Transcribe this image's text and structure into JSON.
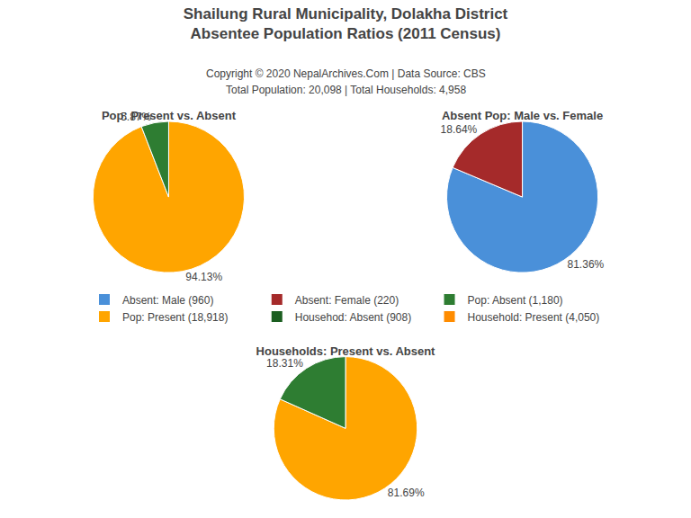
{
  "title": [
    "Shailung Rural Municipality, Dolakha District",
    "Absentee Population Ratios (2011 Census)"
  ],
  "subtitle": [
    "Copyright © 2020 NepalArchives.Com | Data Source: CBS",
    "Total Population: 20,098 | Total Households: 4,958"
  ],
  "series": [
    {
      "name": "Absent: Male (960)",
      "color": "#4A90D9"
    },
    {
      "name": "Absent: Female (220)",
      "color": "#A52A2A"
    },
    {
      "name": "Pop: Absent (1,180)",
      "color": "#2E7D32"
    },
    {
      "name": "Pop: Present (18,918)",
      "color": "#FFA500"
    },
    {
      "name": "Househod: Absent (908)",
      "color": "#1B5E20"
    },
    {
      "name": "Household: Present (4,050)",
      "color": "#FF8C00"
    }
  ],
  "chart_data": [
    {
      "type": "pie",
      "title": "Pop: Present vs. Absent",
      "values": [
        94.13,
        5.87
      ],
      "value_labels": [
        "94.13%",
        "5.87%"
      ],
      "colors": [
        "#FFA500",
        "#2E7D32"
      ]
    },
    {
      "type": "pie",
      "title": "Absent Pop: Male vs. Female",
      "values": [
        81.36,
        18.64
      ],
      "value_labels": [
        "81.36%",
        "18.64%"
      ],
      "colors": [
        "#4A90D9",
        "#A52A2A"
      ]
    },
    {
      "type": "pie",
      "title": "Households: Present vs. Absent",
      "values": [
        81.69,
        18.31
      ],
      "value_labels": [
        "81.69%",
        "18.31%"
      ],
      "colors": [
        "#FFA500",
        "#2E7D32"
      ]
    }
  ]
}
